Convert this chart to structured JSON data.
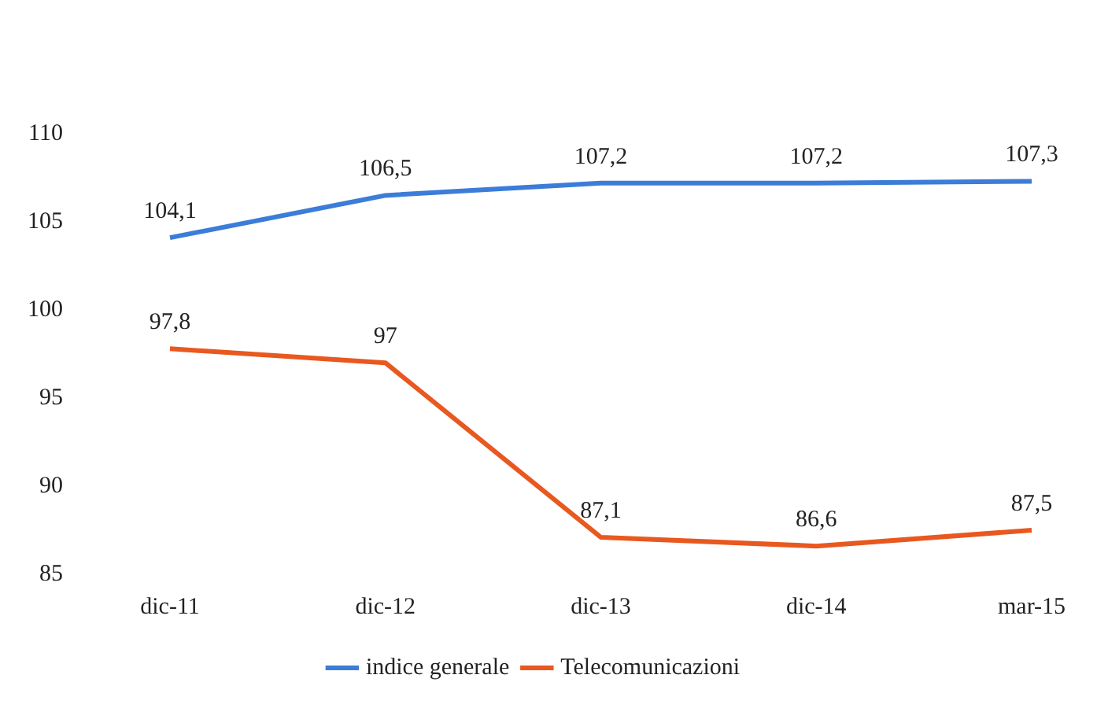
{
  "chart_data": {
    "type": "line",
    "categories": [
      "dic-11",
      "dic-12",
      "dic-13",
      "dic-14",
      "mar-15"
    ],
    "series": [
      {
        "name": "indice generale",
        "color": "#3b7dd8",
        "values": [
          104.1,
          106.5,
          107.2,
          107.2,
          107.3
        ],
        "value_labels": [
          "104,1",
          "106,5",
          "107,2",
          "107,2",
          "107,3"
        ]
      },
      {
        "name": "Telecomunicazioni",
        "color": "#e8581f",
        "values": [
          97.8,
          97,
          87.1,
          86.6,
          87.5
        ],
        "value_labels": [
          "97,8",
          "97",
          "87,1",
          "86,6",
          "87,5"
        ]
      }
    ],
    "ylim": [
      85,
      110
    ],
    "yticks": [
      85,
      90,
      95,
      100,
      105,
      110
    ],
    "grid": false,
    "legend": "bottom",
    "marker": "none",
    "line_style": "solid"
  }
}
